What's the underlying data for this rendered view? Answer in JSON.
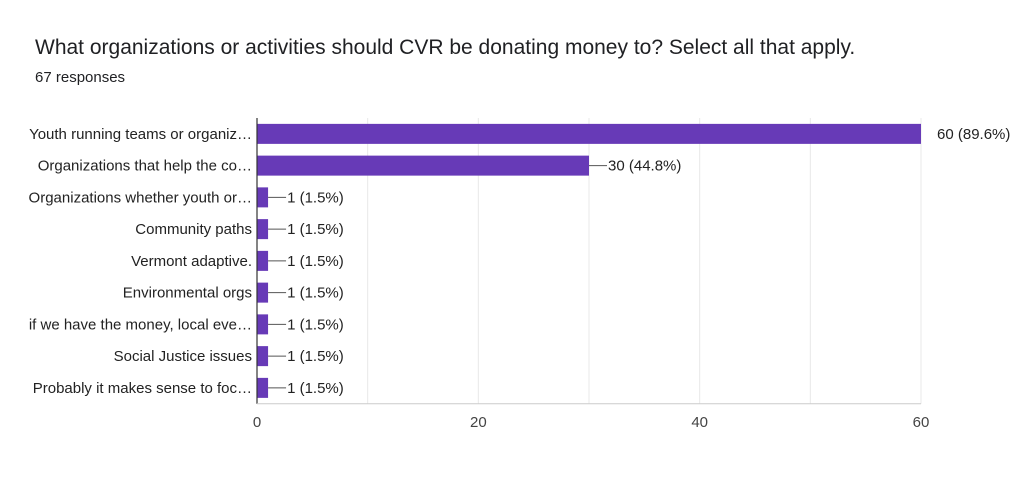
{
  "header": {
    "title": "What organizations or activities should CVR be donating money to? Select all that apply.",
    "subtitle": "67 responses"
  },
  "chart_data": {
    "type": "bar",
    "orientation": "horizontal",
    "categories": [
      "Youth running teams or organiz…",
      "Organizations that help the co…",
      "Organizations whether youth or…",
      "Community paths",
      "Vermont adaptive.",
      "Environmental orgs",
      "if we have the money, local eve…",
      "Social Justice issues",
      "Probably it makes sense to foc…"
    ],
    "values": [
      60,
      30,
      1,
      1,
      1,
      1,
      1,
      1,
      1
    ],
    "data_labels": [
      "60 (89.6%)",
      "30 (44.8%)",
      "1 (1.5%)",
      "1 (1.5%)",
      "1 (1.5%)",
      "1 (1.5%)",
      "1 (1.5%)",
      "1 (1.5%)",
      "1 (1.5%)"
    ],
    "xlim": [
      0,
      60
    ],
    "xticks": [
      0,
      20,
      40,
      60
    ],
    "grid": true,
    "colors": {
      "bar": "#673ab7",
      "grid": "#e8e8e8",
      "axis": "#333333"
    }
  }
}
